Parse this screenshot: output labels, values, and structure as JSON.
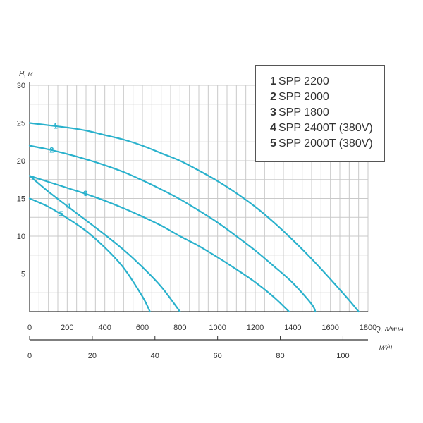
{
  "chart_data": {
    "type": "line",
    "ylabel": "H, м",
    "xlabel": "Q, л/мин",
    "x2label": "м³/ч",
    "xlim": [
      0,
      1800
    ],
    "ylim": [
      0,
      30
    ],
    "x2lim": [
      0,
      108
    ],
    "x_ticks": [
      0,
      200,
      400,
      600,
      800,
      1000,
      1200,
      1400,
      1600,
      1800
    ],
    "y_ticks": [
      5,
      10,
      15,
      20,
      25,
      30
    ],
    "x2_ticks": [
      0,
      20,
      40,
      60,
      80,
      100
    ],
    "grid": true,
    "legend_position": "top-right",
    "series": [
      {
        "id": "1",
        "name": "SPP 2200",
        "x": [
          0,
          100,
          200,
          300,
          400,
          500,
          600,
          700,
          800,
          900,
          1000,
          1100,
          1200,
          1300,
          1400,
          1500,
          1600,
          1700,
          1750
        ],
        "y": [
          25,
          24.7,
          24.4,
          24,
          23.4,
          22.8,
          22,
          21,
          20,
          18.7,
          17.3,
          15.7,
          13.9,
          11.8,
          9.5,
          7,
          4.3,
          1.5,
          0
        ]
      },
      {
        "id": "2",
        "name": "SPP 2000",
        "x": [
          0,
          100,
          200,
          300,
          400,
          500,
          600,
          700,
          800,
          900,
          1000,
          1100,
          1200,
          1300,
          1400,
          1500,
          1520
        ],
        "y": [
          22,
          21.5,
          20.9,
          20.2,
          19.4,
          18.5,
          17.4,
          16.2,
          14.9,
          13.4,
          11.8,
          10,
          8.1,
          6,
          3.8,
          1,
          0
        ]
      },
      {
        "id": "3",
        "name": "SPP 1800",
        "x": [
          0,
          100,
          200,
          300,
          400,
          500,
          600,
          700,
          800,
          900,
          1000,
          1100,
          1200,
          1300,
          1380
        ],
        "y": [
          18,
          17.2,
          16.4,
          15.6,
          14.7,
          13.7,
          12.6,
          11.4,
          10,
          8.7,
          7.2,
          5.6,
          3.9,
          1.9,
          0
        ]
      },
      {
        "id": "4",
        "name": "SPP 2400T (380V)",
        "x": [
          0,
          100,
          200,
          300,
          400,
          500,
          600,
          700,
          800
        ],
        "y": [
          18,
          15.9,
          14,
          12.1,
          10.2,
          8.2,
          5.9,
          3.3,
          0
        ]
      },
      {
        "id": "5",
        "name": "SPP 2000T (380V)",
        "x": [
          0,
          100,
          200,
          300,
          400,
          500,
          600,
          640
        ],
        "y": [
          15,
          13.9,
          12.4,
          10.7,
          8.5,
          5.8,
          2,
          0
        ]
      }
    ]
  },
  "colors": {
    "curve": "#29b1cc",
    "label": "#29b1cc",
    "grid": "#c9c9c9",
    "axis": "#333333"
  }
}
